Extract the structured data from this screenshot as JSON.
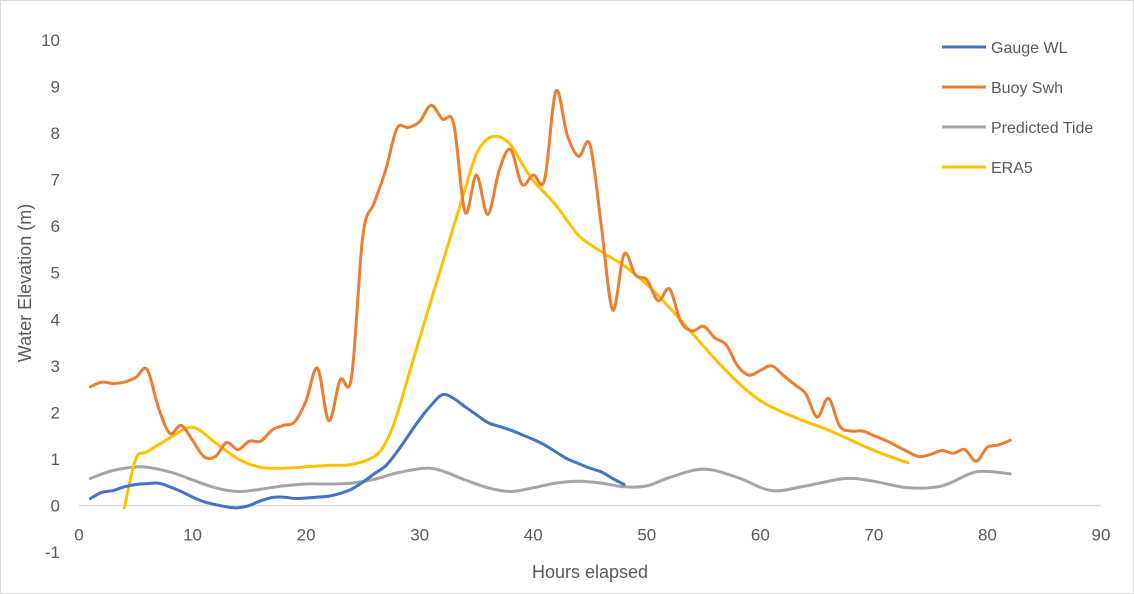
{
  "chart_data": {
    "type": "line",
    "title": "",
    "xlabel": "Hours elapsed",
    "ylabel": "Water Elevation (m)",
    "xlim": [
      0,
      90
    ],
    "ylim": [
      -1,
      10
    ],
    "xticks": [
      0,
      10,
      20,
      30,
      40,
      50,
      60,
      70,
      80,
      90
    ],
    "yticks": [
      -1,
      0,
      1,
      2,
      3,
      4,
      5,
      6,
      7,
      8,
      9,
      10
    ],
    "grid": false,
    "legend_position": "top-right",
    "series": [
      {
        "name": "Gauge WL",
        "color": "#4472C4",
        "x": [
          1,
          2,
          3,
          4,
          5,
          6,
          7,
          8,
          9,
          10,
          11,
          12,
          13,
          14,
          15,
          16,
          17,
          18,
          19,
          20,
          21,
          22,
          23,
          24,
          25,
          26,
          27,
          28,
          29,
          30,
          31,
          32,
          33,
          34,
          35,
          36,
          37,
          38,
          39,
          40,
          41,
          42,
          43,
          44,
          45,
          46,
          47,
          48
        ],
        "y": [
          0.15,
          0.28,
          0.32,
          0.4,
          0.45,
          0.47,
          0.48,
          0.4,
          0.3,
          0.18,
          0.08,
          0.02,
          -0.03,
          -0.05,
          0.0,
          0.1,
          0.17,
          0.18,
          0.15,
          0.16,
          0.18,
          0.2,
          0.26,
          0.35,
          0.5,
          0.68,
          0.85,
          1.15,
          1.5,
          1.85,
          2.15,
          2.38,
          2.3,
          2.12,
          1.95,
          1.78,
          1.7,
          1.62,
          1.52,
          1.42,
          1.3,
          1.15,
          1.0,
          0.9,
          0.8,
          0.72,
          0.58,
          0.45
        ]
      },
      {
        "name": "Buoy Swh",
        "color": "#ED7D31",
        "x": [
          1,
          2,
          3,
          4,
          5,
          6,
          7,
          8,
          9,
          10,
          11,
          12,
          13,
          14,
          15,
          16,
          17,
          18,
          19,
          20,
          21,
          22,
          23,
          24,
          25,
          26,
          27,
          28,
          29,
          30,
          31,
          32,
          33,
          34,
          35,
          36,
          37,
          38,
          39,
          40,
          41,
          42,
          43,
          44,
          45,
          46,
          47,
          48,
          49,
          50,
          51,
          52,
          53,
          54,
          55,
          56,
          57,
          58,
          59,
          60,
          61,
          62,
          63,
          64,
          65,
          66,
          67,
          68,
          69,
          70,
          71,
          72,
          73,
          74,
          75,
          76,
          77,
          78,
          79,
          80,
          81,
          82
        ],
        "y": [
          2.55,
          2.65,
          2.62,
          2.65,
          2.75,
          2.92,
          2.1,
          1.55,
          1.72,
          1.4,
          1.05,
          1.05,
          1.35,
          1.2,
          1.38,
          1.38,
          1.62,
          1.72,
          1.8,
          2.25,
          2.95,
          1.82,
          2.7,
          2.75,
          5.8,
          6.5,
          7.2,
          8.1,
          8.12,
          8.25,
          8.6,
          8.3,
          8.2,
          6.3,
          7.1,
          6.25,
          7.2,
          7.65,
          6.9,
          7.1,
          7.0,
          8.9,
          7.95,
          7.5,
          7.75,
          6.0,
          4.2,
          5.4,
          4.95,
          4.85,
          4.4,
          4.65,
          3.95,
          3.75,
          3.85,
          3.6,
          3.45,
          3.0,
          2.8,
          2.9,
          3.0,
          2.8,
          2.6,
          2.4,
          1.9,
          2.3,
          1.7,
          1.6,
          1.6,
          1.5,
          1.4,
          1.28,
          1.15,
          1.05,
          1.1,
          1.18,
          1.12,
          1.2,
          0.95,
          1.25,
          1.3,
          1.4
        ]
      },
      {
        "name": "Predicted Tide",
        "color": "#A5A5A5",
        "x": [
          1,
          3,
          5.5,
          8,
          10,
          12,
          14,
          16,
          18,
          20,
          22,
          24,
          26,
          28,
          30.5,
          32,
          34,
          36,
          38,
          40,
          42,
          44,
          46,
          48,
          50,
          52,
          55,
          58,
          61,
          64,
          67.5,
          70,
          73,
          76,
          79,
          82
        ],
        "y": [
          0.58,
          0.75,
          0.83,
          0.72,
          0.55,
          0.38,
          0.3,
          0.35,
          0.42,
          0.46,
          0.46,
          0.48,
          0.56,
          0.7,
          0.8,
          0.74,
          0.55,
          0.38,
          0.3,
          0.38,
          0.48,
          0.52,
          0.48,
          0.4,
          0.42,
          0.6,
          0.78,
          0.6,
          0.32,
          0.42,
          0.58,
          0.52,
          0.38,
          0.42,
          0.72,
          0.68
        ]
      },
      {
        "name": "ERA5",
        "color": "#FFC000",
        "x": [
          4,
          5,
          6,
          8,
          10,
          12,
          14,
          16,
          18,
          20,
          22,
          24,
          26,
          27,
          28,
          30,
          32,
          34,
          35,
          36,
          37,
          38,
          39,
          40,
          42,
          44,
          46,
          48,
          50,
          52,
          54,
          56,
          58,
          60,
          62,
          64,
          66,
          68,
          70,
          72,
          73
        ],
        "y": [
          -0.05,
          1.0,
          1.15,
          1.45,
          1.68,
          1.35,
          1.0,
          0.82,
          0.8,
          0.83,
          0.86,
          0.88,
          1.05,
          1.35,
          1.95,
          3.6,
          5.2,
          6.8,
          7.55,
          7.88,
          7.92,
          7.75,
          7.35,
          6.98,
          6.45,
          5.8,
          5.45,
          5.15,
          4.75,
          4.25,
          3.7,
          3.15,
          2.65,
          2.25,
          2.0,
          1.8,
          1.62,
          1.4,
          1.18,
          1.0,
          0.92
        ]
      }
    ]
  }
}
